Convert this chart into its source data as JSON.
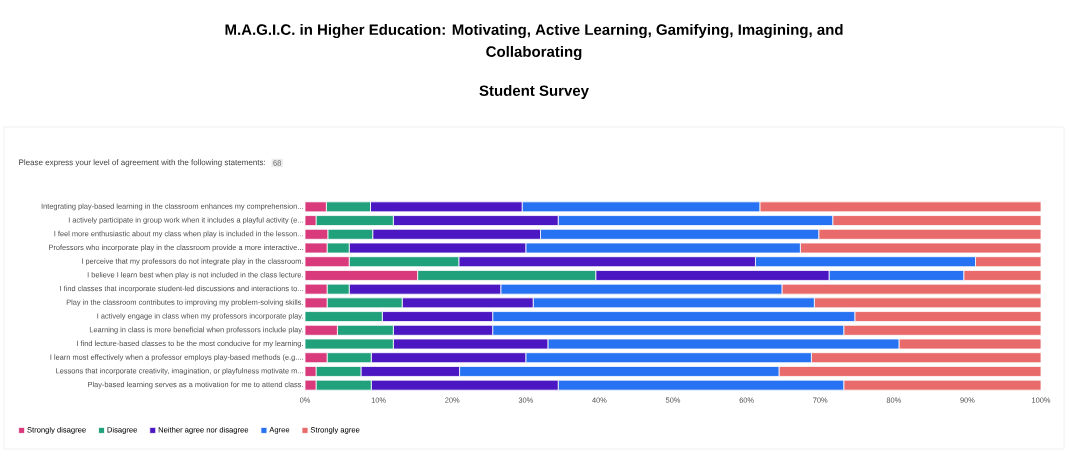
{
  "chart_data": {
    "type": "bar",
    "orientation": "horizontal",
    "stacked": true,
    "title": "M.A.G.I.C. in Higher Education: Motivating, Active Learning, Gamifying, Imagining, and Collaborating",
    "subtitle": "Student Survey",
    "annotations": [
      "Please express your level of agreement with the following statements:",
      "68"
    ],
    "categories": [
      "Integrating play-based learning in the classroom enhances my comprehension...",
      "I actively participate in group work when it includes a playful activity (e...",
      "I feel more enthusiastic about my class when play is included in the lesson...",
      "Professors who incorporate play in the classroom provide a more interactive...",
      "I perceive that my professors do not integrate play in the classroom.",
      "I believe I learn best when play is not included in the class lecture.",
      "I find classes that incorporate student-led discussions and interactions to...",
      "Play in the classroom contributes to improving my problem-solving skills.",
      "I actively engage in class when my professors incorporate play.",
      "Learning in class is more beneficial when professors include play.",
      "I find lecture-based classes to be the most conducive for my learning.",
      "I learn most effectively when a professor employs play-based methods (e.g....",
      "Lessons that incorporate creativity, imagination, or playfulness motivate m...",
      "Play-based learning serves as a motivation for me to attend class."
    ],
    "series": [
      {
        "name": "Strongly disagree",
        "color": "#d83a7c",
        "values": [
          2.9,
          1.5,
          3.1,
          3.0,
          6.0,
          15.3,
          3.0,
          3.0,
          0,
          4.4,
          0,
          3.0,
          1.5,
          1.5
        ]
      },
      {
        "name": "Disagree",
        "color": "#21a07c",
        "values": [
          6.0,
          10.5,
          6.1,
          3.0,
          14.9,
          24.2,
          3.0,
          10.2,
          10.5,
          7.6,
          12.0,
          6.0,
          6.1,
          7.5
        ]
      },
      {
        "name": "Neither agree nor disagree",
        "color": "#4b17c2",
        "values": [
          20.6,
          22.4,
          22.8,
          24.0,
          40.3,
          31.7,
          20.6,
          17.8,
          15.0,
          13.5,
          21.0,
          21.0,
          13.4,
          25.4
        ]
      },
      {
        "name": "Agree",
        "color": "#2672f2",
        "values": [
          32.3,
          37.3,
          37.8,
          37.3,
          29.9,
          18.3,
          38.2,
          38.2,
          49.2,
          47.7,
          47.7,
          38.8,
          43.4,
          38.8
        ]
      },
      {
        "name": "Strongly agree",
        "color": "#e96a6a",
        "values": [
          38.2,
          28.3,
          30.2,
          32.7,
          8.9,
          10.5,
          35.2,
          30.8,
          25.3,
          26.8,
          19.3,
          31.2,
          35.6,
          26.8
        ]
      }
    ],
    "xlim": [
      0,
      100
    ],
    "xticks": [
      {
        "value": 0,
        "label": "0%"
      },
      {
        "value": 10,
        "label": "10%"
      },
      {
        "value": 20,
        "label": "20%"
      },
      {
        "value": 30,
        "label": "30%"
      },
      {
        "value": 40,
        "label": "40%"
      },
      {
        "value": 50,
        "label": "50%"
      },
      {
        "value": 60,
        "label": "60%"
      },
      {
        "value": 70,
        "label": "70%"
      },
      {
        "value": 80,
        "label": "80%"
      },
      {
        "value": 90,
        "label": "90%"
      },
      {
        "value": 100,
        "label": "100%"
      }
    ],
    "legend": "bottom left"
  }
}
